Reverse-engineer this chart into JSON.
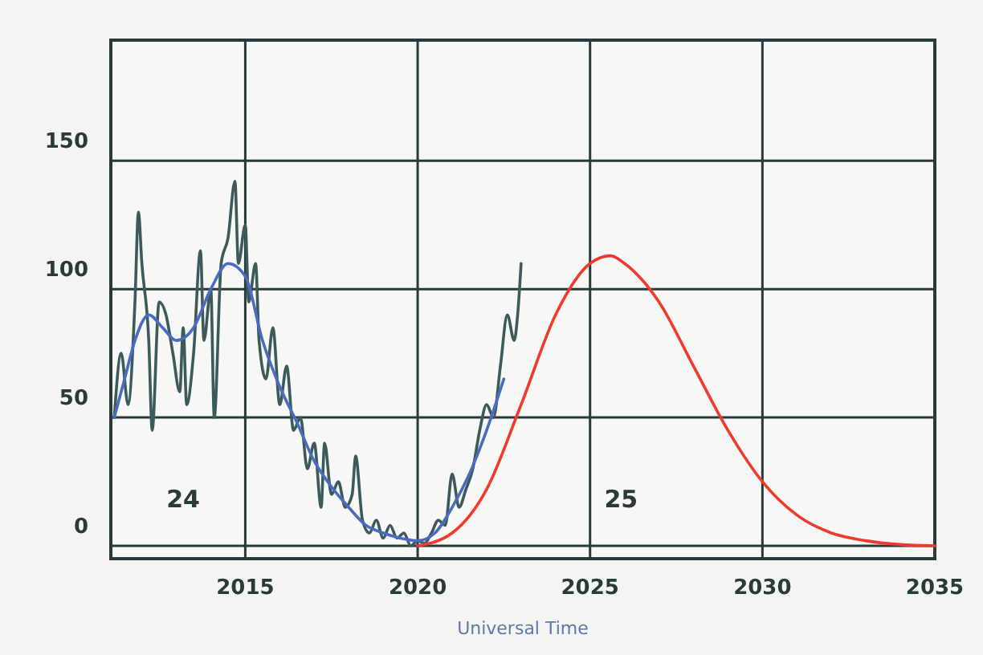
{
  "chart_data": {
    "type": "line",
    "xlabel": "Universal Time",
    "xlim": [
      2011.1,
      2035
    ],
    "xticks": [
      2015,
      2020,
      2025,
      2030,
      2035
    ],
    "ylim": [
      -5,
      197
    ],
    "yticks": [
      0,
      50,
      100,
      150
    ],
    "grid": true,
    "annotations": [
      "24",
      "25"
    ],
    "series": [
      {
        "color": "#3c5a5c",
        "x": [
          2011.2,
          2011.4,
          2011.6,
          2011.8,
          2011.9,
          2012.0,
          2012.2,
          2012.3,
          2012.5,
          2012.7,
          2012.9,
          2013.1,
          2013.2,
          2013.3,
          2013.5,
          2013.7,
          2013.8,
          2014.0,
          2014.1,
          2014.3,
          2014.5,
          2014.7,
          2014.8,
          2015.0,
          2015.1,
          2015.3,
          2015.4,
          2015.6,
          2015.8,
          2016.0,
          2016.2,
          2016.4,
          2016.6,
          2016.8,
          2017.0,
          2017.2,
          2017.3,
          2017.5,
          2017.7,
          2017.9,
          2018.1,
          2018.2,
          2018.4,
          2018.6,
          2018.8,
          2019.0,
          2019.2,
          2019.4,
          2019.6,
          2019.8,
          2020.0,
          2020.2,
          2020.4,
          2020.6,
          2020.8,
          2021.0,
          2021.2,
          2021.4,
          2021.6,
          2021.8,
          2022.0,
          2022.2,
          2022.4,
          2022.6,
          2022.8,
          2022.9,
          2023.0
        ],
        "values": [
          50,
          75,
          55,
          95,
          130,
          110,
          80,
          45,
          95,
          90,
          75,
          60,
          85,
          55,
          75,
          115,
          80,
          100,
          50,
          110,
          120,
          142,
          110,
          125,
          95,
          110,
          80,
          65,
          85,
          55,
          70,
          45,
          50,
          30,
          40,
          15,
          40,
          20,
          25,
          15,
          20,
          35,
          10,
          5,
          10,
          3,
          8,
          3,
          5,
          0,
          2,
          1,
          5,
          10,
          8,
          28,
          15,
          22,
          30,
          45,
          55,
          50,
          70,
          90,
          80,
          90,
          110
        ]
      },
      {
        "color": "#4a6cc0",
        "x": [
          2011.2,
          2011.5,
          2011.8,
          2012.2,
          2012.6,
          2013.0,
          2013.5,
          2014.0,
          2014.5,
          2015.0,
          2015.5,
          2016.0,
          2016.5,
          2017.0,
          2017.5,
          2018.0,
          2018.5,
          2019.0,
          2019.5,
          2020.0,
          2020.5,
          2021.0,
          2021.5,
          2022.0,
          2022.5
        ],
        "values": [
          50,
          65,
          80,
          90,
          85,
          80,
          85,
          100,
          110,
          105,
          80,
          62,
          48,
          33,
          23,
          15,
          8,
          5,
          3,
          2,
          5,
          15,
          28,
          45,
          65
        ]
      },
      {
        "color": "#f03a2e",
        "x": [
          2020.0,
          2021,
          2022,
          2023,
          2024,
          2025,
          2025.6,
          2026,
          2027,
          2028,
          2029,
          2030,
          2031,
          2032,
          2033,
          2034,
          2035
        ],
        "values": [
          0,
          5,
          22,
          55,
          90,
          110,
          113,
          110,
          95,
          70,
          45,
          25,
          12,
          5,
          2,
          0.5,
          0
        ]
      }
    ]
  }
}
